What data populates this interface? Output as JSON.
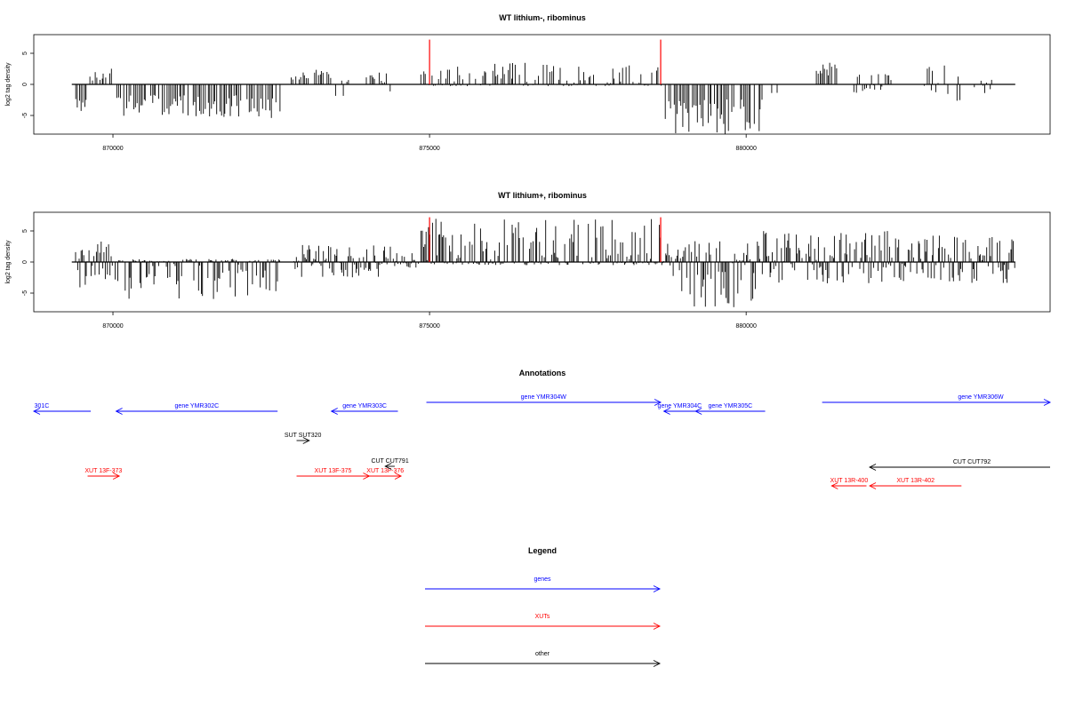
{
  "colors": {
    "gene": "#0000ff",
    "xut": "#ff0000",
    "other": "#000000",
    "axis": "#000000",
    "marker": "#ff0000"
  },
  "chart_data": [
    {
      "type": "bar",
      "title": "WT lithium-, ribominus",
      "ylabel": "log2 tag density",
      "xlabel": "",
      "xlim": [
        868750,
        884800
      ],
      "ylim": [
        -8,
        8
      ],
      "xticks": [
        870000,
        875000,
        880000
      ],
      "yticks": [
        -5,
        0,
        5
      ],
      "coverage_range": [
        869350,
        884250
      ],
      "markers": [
        875000,
        878650
      ],
      "segments": [
        {
          "start": 869380,
          "end": 869600,
          "min": -4.5,
          "max": 0
        },
        {
          "start": 869620,
          "end": 869900,
          "min": 0,
          "max": 2
        },
        {
          "start": 869950,
          "end": 870000,
          "min": 0,
          "max": 3
        },
        {
          "start": 870050,
          "end": 872650,
          "min": -5.5,
          "max": 0
        },
        {
          "start": 872800,
          "end": 873450,
          "min": 0,
          "max": 2.5
        },
        {
          "start": 873500,
          "end": 873800,
          "min": -2,
          "max": 1.5
        },
        {
          "start": 874000,
          "end": 874150,
          "min": 0,
          "max": 1.5
        },
        {
          "start": 874200,
          "end": 874400,
          "min": -2.5,
          "max": 2
        },
        {
          "start": 874820,
          "end": 878680,
          "min": -0.3,
          "max": 3.5
        },
        {
          "start": 878720,
          "end": 880300,
          "min": -8,
          "max": 0
        },
        {
          "start": 880400,
          "end": 880500,
          "min": -2,
          "max": 0
        },
        {
          "start": 881100,
          "end": 881450,
          "min": 0,
          "max": 3.5
        },
        {
          "start": 881700,
          "end": 882300,
          "min": -1.5,
          "max": 2
        },
        {
          "start": 882800,
          "end": 883400,
          "min": -3,
          "max": 3.5
        },
        {
          "start": 883600,
          "end": 883900,
          "min": -2.5,
          "max": 1
        }
      ]
    },
    {
      "type": "bar",
      "title": "WT lithium+, ribominus",
      "ylabel": "log2 tag density",
      "xlabel": "",
      "xlim": [
        868750,
        884800
      ],
      "ylim": [
        -8,
        8
      ],
      "xticks": [
        870000,
        875000,
        880000
      ],
      "yticks": [
        -5,
        0,
        5
      ],
      "coverage_range": [
        869350,
        884250
      ],
      "markers": [
        875000,
        878650
      ],
      "segments": [
        {
          "start": 869380,
          "end": 869650,
          "min": -5.5,
          "max": 2
        },
        {
          "start": 869650,
          "end": 870050,
          "min": -3,
          "max": 3.5
        },
        {
          "start": 870050,
          "end": 872650,
          "min": -6,
          "max": 0.5
        },
        {
          "start": 872850,
          "end": 874400,
          "min": -2.5,
          "max": 3
        },
        {
          "start": 874400,
          "end": 874800,
          "min": -1,
          "max": 1.5
        },
        {
          "start": 874800,
          "end": 878700,
          "min": -0.5,
          "max": 7
        },
        {
          "start": 878700,
          "end": 880250,
          "min": -7.5,
          "max": 3.5
        },
        {
          "start": 880250,
          "end": 884250,
          "min": -3.5,
          "max": 5
        }
      ]
    }
  ],
  "annotations": {
    "title": "Annotations",
    "genes": [
      {
        "label": "301C",
        "start": 868750,
        "end": 869650,
        "dir": "-",
        "row": 1
      },
      {
        "label": "gene YMR302C",
        "start": 870050,
        "end": 872600,
        "dir": "-",
        "row": 1
      },
      {
        "label": "gene YMR303C",
        "start": 873450,
        "end": 874500,
        "dir": "-",
        "row": 1
      },
      {
        "label": "gene YMR304W",
        "start": 874950,
        "end": 878650,
        "dir": "+",
        "row": 0
      },
      {
        "label": "gene YMR304C",
        "start": 878700,
        "end": 879200,
        "dir": "-",
        "row": 1
      },
      {
        "label": "gene YMR305C",
        "start": 879200,
        "end": 880300,
        "dir": "-",
        "row": 1
      },
      {
        "label": "gene YMR306W",
        "start": 881200,
        "end": 884800,
        "dir": "+",
        "row": 0
      }
    ],
    "xuts": [
      {
        "label": "XUT 13F-373",
        "start": 869600,
        "end": 870100,
        "dir": "+",
        "row": 0
      },
      {
        "label": "XUT 13F-375",
        "start": 872900,
        "end": 874050,
        "dir": "+",
        "row": 0
      },
      {
        "label": "XUT 13F-376",
        "start": 874050,
        "end": 874550,
        "dir": "+",
        "row": 0
      },
      {
        "label": "XUT 13R-400",
        "start": 881350,
        "end": 881900,
        "dir": "-",
        "row": 1
      },
      {
        "label": "XUT 13R-402",
        "start": 881950,
        "end": 883400,
        "dir": "-",
        "row": 1
      }
    ],
    "others": [
      {
        "label": "SUT SUT320",
        "start": 872900,
        "end": 873100,
        "dir": "+",
        "row": 0
      },
      {
        "label": "CUT CUT791",
        "start": 874300,
        "end": 874450,
        "dir": "-",
        "row": 1
      },
      {
        "label": "CUT CUT792",
        "start": 881950,
        "end": 884800,
        "dir": "-",
        "row": 2
      }
    ]
  },
  "legend": {
    "title": "Legend",
    "items": [
      {
        "label": "genes",
        "color": "#0000ff"
      },
      {
        "label": "XUTs",
        "color": "#ff0000"
      },
      {
        "label": "other",
        "color": "#000000"
      }
    ]
  }
}
